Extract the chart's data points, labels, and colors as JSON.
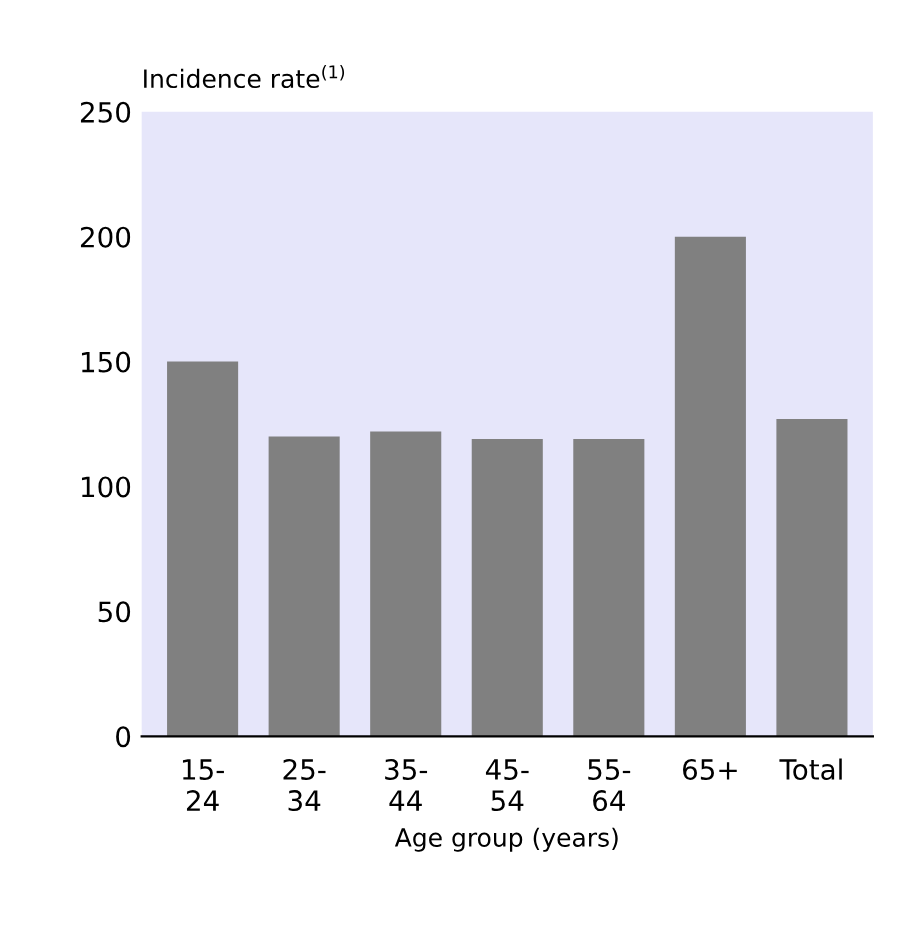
{
  "chart_data": {
    "type": "bar",
    "ylabel": "Incidence rate$^{(1)}$",
    "xlabel": "Age group (years)",
    "categories": [
      "15-\n24",
      "25-\n34",
      "35-\n44",
      "45-\n54",
      "55-\n64",
      "65+",
      "Total"
    ],
    "values": [
      150,
      120,
      122,
      119,
      119,
      200,
      127
    ],
    "color": "#808080",
    "ylim": [
      0,
      250
    ],
    "yticks": [
      0,
      50,
      100,
      150,
      200,
      250
    ],
    "grid": false
  }
}
